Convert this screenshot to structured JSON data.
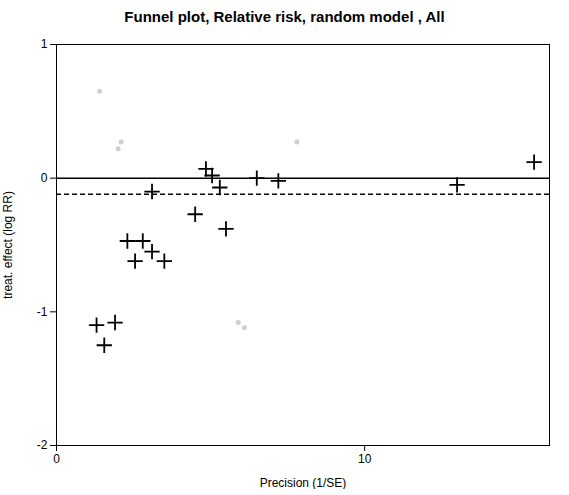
{
  "chart_data": {
    "type": "scatter",
    "title": "Funnel plot, Relative risk, random model , All",
    "xlabel": "Precision (1/SE)",
    "ylabel": "treat. effect (log RR)",
    "xlim": [
      0,
      16
    ],
    "ylim": [
      -2,
      1
    ],
    "xticks": [
      0,
      10
    ],
    "yticks": [
      -2,
      -1,
      0,
      1
    ],
    "grid": false,
    "series": [
      {
        "color": "#bbbbbb",
        "marker": "circle",
        "x": [
          1.4,
          2.1,
          2.0,
          7.8,
          5.9,
          6.1
        ],
        "values": [
          0.65,
          0.27,
          0.22,
          0.27,
          -1.08,
          -1.12
        ]
      },
      {
        "color": "#000000",
        "marker": "plus",
        "x": [
          1.3,
          1.9,
          1.55,
          2.3,
          2.8,
          3.1,
          2.55,
          3.5,
          4.5,
          4.85,
          5.05,
          5.5,
          3.1,
          5.3,
          6.5,
          7.2,
          13.0,
          15.5
        ],
        "values": [
          -1.1,
          -1.08,
          -1.25,
          -0.47,
          -0.47,
          -0.55,
          -0.62,
          -0.62,
          -0.27,
          0.07,
          0.02,
          -0.38,
          -0.1,
          -0.07,
          0.0,
          -0.02,
          -0.05,
          0.12
        ]
      }
    ],
    "lines": [
      {
        "y": 0,
        "line_style": "solid"
      },
      {
        "y": -0.12,
        "line_style": "dashed"
      }
    ]
  }
}
